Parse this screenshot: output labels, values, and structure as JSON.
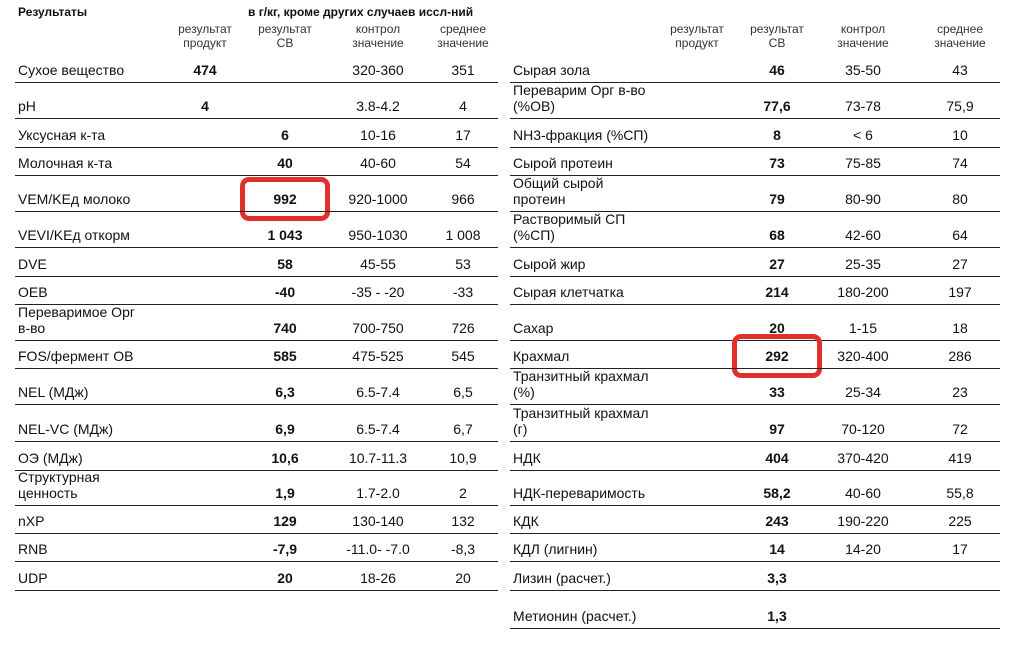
{
  "header": {
    "title": "Результаты",
    "note": "в г/кг, кроме других случаев иссл-ний"
  },
  "tables": [
    {
      "columns": [
        "результат\nпродукт",
        "результат\nСВ",
        "контрол\nзначение",
        "среднее\nзначение"
      ],
      "rows": [
        {
          "label": "Сухое вещество",
          "product": "474",
          "control": "320-360",
          "mean": "351"
        },
        {
          "label": "pH",
          "product": "4",
          "control": "3.8-4.2",
          "mean": "4"
        },
        {
          "label": "Уксусная к-та",
          "sv": "6",
          "control": "10-16",
          "mean": "17"
        },
        {
          "label": "Молочная к-та",
          "sv": "40",
          "control": "40-60",
          "mean": "54"
        },
        {
          "label": "VEM/KEд молоко",
          "sv": "992",
          "control": "920-1000",
          "mean": "966",
          "highlight": true
        },
        {
          "label": "VEVI/KEд откорм",
          "sv": "1 043",
          "control": "950-1030",
          "mean": "1 008"
        },
        {
          "label": "DVE",
          "sv": "58",
          "control": "45-55",
          "mean": "53"
        },
        {
          "label": "OEB",
          "sv": "-40",
          "control": "-35 - -20",
          "mean": "-33"
        },
        {
          "label": "Переваримое Орг\nв-во",
          "sv": "740",
          "control": "700-750",
          "mean": "726"
        },
        {
          "label": "FOS/фермент OB",
          "sv": "585",
          "control": "475-525",
          "mean": "545"
        },
        {
          "label": "NEL (МДж)",
          "sv": "6,3",
          "control": "6.5-7.4",
          "mean": "6,5"
        },
        {
          "label": "NEL-VC (МДж)",
          "sv": "6,9",
          "control": "6.5-7.4",
          "mean": "6,7"
        },
        {
          "label": "ОЭ (МДж)",
          "sv": "10,6",
          "control": "10.7-11.3",
          "mean": "10,9"
        },
        {
          "label": "Структурная\nценность",
          "sv": "1,9",
          "control": "1.7-2.0",
          "mean": "2"
        },
        {
          "label": "nXP",
          "sv": "129",
          "control": "130-140",
          "mean": "132"
        },
        {
          "label": "RNB",
          "sv": "-7,9",
          "control": "-11.0- -7.0",
          "mean": "-8,3"
        },
        {
          "label": "UDP",
          "sv": "20",
          "control": "18-26",
          "mean": "20"
        }
      ]
    },
    {
      "columns": [
        "результат\nпродукт",
        "результат\nСВ",
        "контрол\nзначение",
        "среднее\nзначение"
      ],
      "rows": [
        {
          "label": "Сырая зола",
          "sv": "46",
          "control": "35-50",
          "mean": "43"
        },
        {
          "label": "Переварим Орг в-во\n(%OB)",
          "sv": "77,6",
          "control": "73-78",
          "mean": "75,9"
        },
        {
          "label": "NH3-фракция (%СП)",
          "sv": "8",
          "control": "< 6",
          "mean": "10"
        },
        {
          "label": "Сырой протеин",
          "sv": "73",
          "control": "75-85",
          "mean": "74"
        },
        {
          "label": "Общий сырой\nпротеин",
          "sv": "79",
          "control": "80-90",
          "mean": "80"
        },
        {
          "label": "Растворимый СП\n(%СП)",
          "sv": "68",
          "control": "42-60",
          "mean": "64"
        },
        {
          "label": "Сырой жир",
          "sv": "27",
          "control": "25-35",
          "mean": "27"
        },
        {
          "label": "Сырая клетчатка",
          "sv": "214",
          "control": "180-200",
          "mean": "197"
        },
        {
          "label": "Сахар",
          "sv": "20",
          "control": "1-15",
          "mean": "18"
        },
        {
          "label": "Крахмал",
          "sv": "292",
          "control": "320-400",
          "mean": "286",
          "highlight": true
        },
        {
          "label": "Транзитный крахмал\n(%)",
          "sv": "33",
          "control": "25-34",
          "mean": "23"
        },
        {
          "label": "Транзитный крахмал\n(г)",
          "sv": "97",
          "control": "70-120",
          "mean": "72"
        },
        {
          "label": "НДК",
          "sv": "404",
          "control": "370-420",
          "mean": "419"
        },
        {
          "label": "НДК-переваримость",
          "sv": "58,2",
          "control": "40-60",
          "mean": "55,8"
        },
        {
          "label": "КДК",
          "sv": "243",
          "control": "190-220",
          "mean": "225"
        },
        {
          "label": "КДЛ (лигнин)",
          "sv": "14",
          "control": "14-20",
          "mean": "17"
        },
        {
          "label": "Лизин (расчет.)",
          "sv": "3,3"
        },
        {
          "label": "Метионин (расчет.)",
          "sv": "1,3"
        }
      ]
    }
  ]
}
